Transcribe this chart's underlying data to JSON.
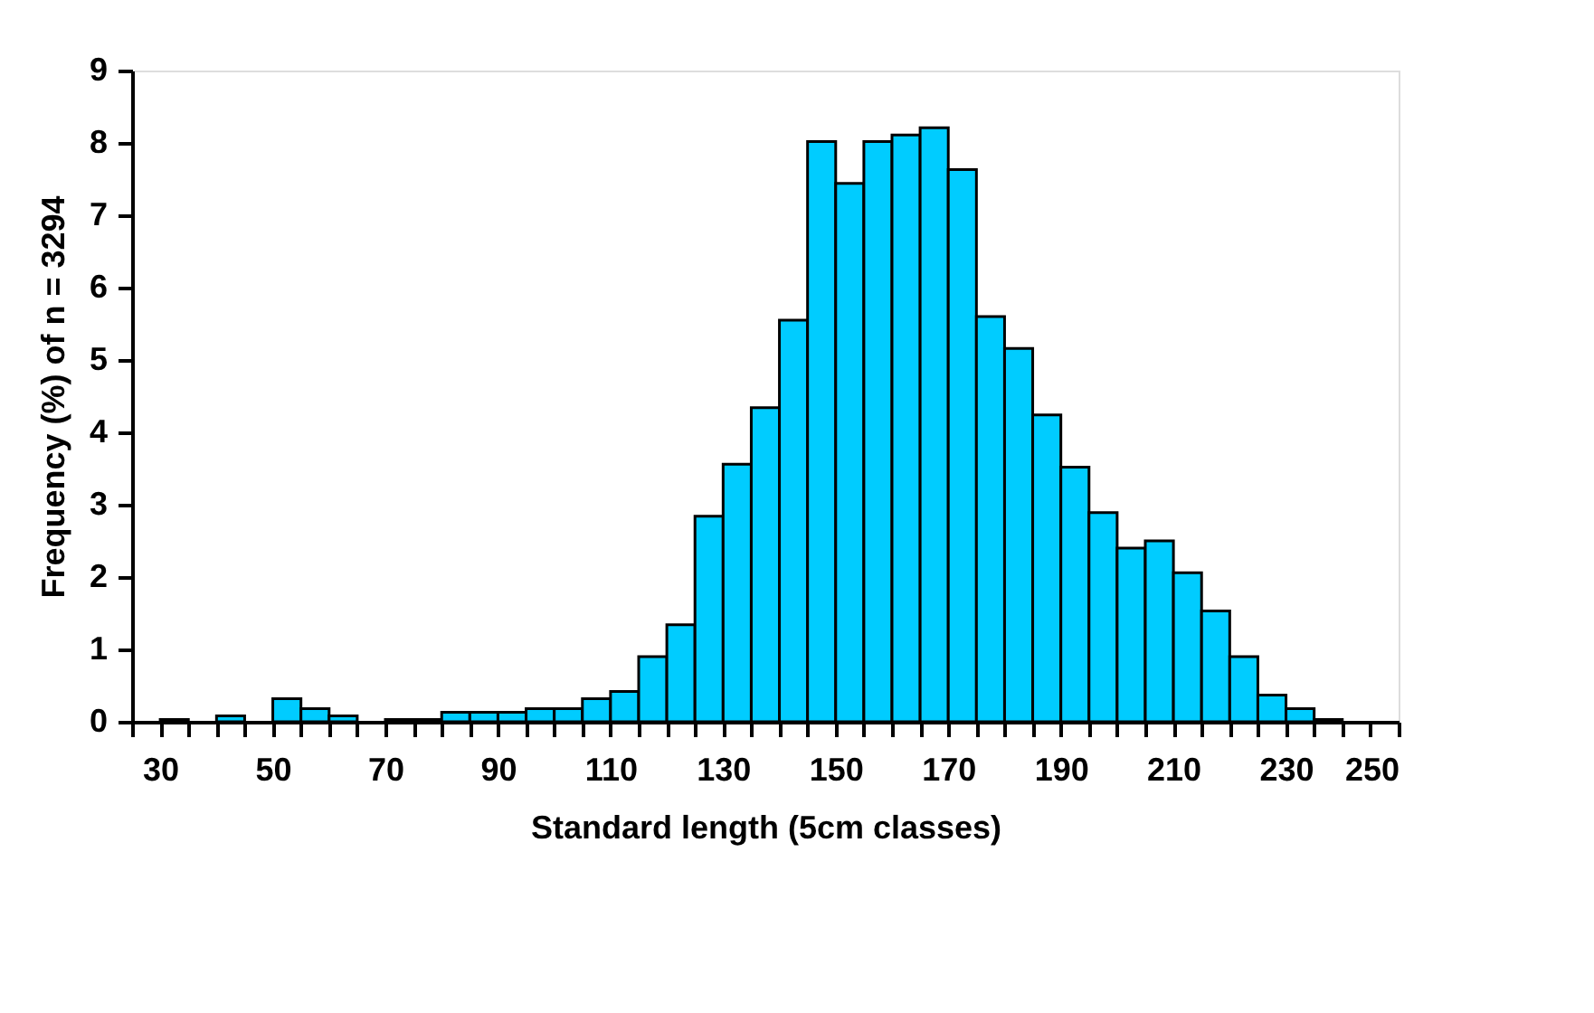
{
  "chart_data": {
    "type": "histogram",
    "xlabel": "Standard length (5cm classes)",
    "ylabel": "Frequency (%) of n = 3294",
    "color": "#00ccff",
    "bins": [
      25,
      30,
      35,
      40,
      45,
      50,
      55,
      60,
      65,
      70,
      75,
      80,
      85,
      90,
      95,
      100,
      105,
      110,
      115,
      120,
      125,
      130,
      135,
      140,
      145,
      150,
      155,
      160,
      165,
      170,
      175,
      180,
      185,
      190,
      195,
      200,
      205,
      210,
      215,
      220,
      225,
      230,
      235,
      240,
      245,
      250
    ],
    "values": [
      0,
      0.03,
      0,
      0.08,
      0,
      0.32,
      0.18,
      0.08,
      0,
      0.03,
      0.03,
      0.13,
      0.13,
      0.13,
      0.18,
      0.18,
      0.32,
      0.42,
      0.9,
      1.34,
      2.84,
      3.56,
      4.34,
      5.55,
      8.02,
      7.44,
      8.02,
      8.11,
      8.21,
      7.63,
      5.6,
      5.16,
      4.24,
      3.52,
      2.89,
      2.4,
      2.5,
      2.06,
      1.53,
      0.9,
      0.37,
      0.18,
      0.03,
      0,
      0
    ],
    "xlim": [
      25,
      250
    ],
    "xticks": [
      {
        "value": 25,
        "label": null
      },
      30,
      {
        "value": 35,
        "label": null
      },
      {
        "value": 40,
        "label": null
      },
      {
        "value": 45,
        "label": null
      },
      50,
      {
        "value": 55,
        "label": null
      },
      {
        "value": 60,
        "label": null
      },
      {
        "value": 65,
        "label": null
      },
      70,
      {
        "value": 75,
        "label": null
      },
      {
        "value": 80,
        "label": null
      },
      {
        "value": 85,
        "label": null
      },
      90,
      {
        "value": 95,
        "label": null
      },
      {
        "value": 100,
        "label": null
      },
      {
        "value": 105,
        "label": null
      },
      110,
      {
        "value": 115,
        "label": null
      },
      {
        "value": 120,
        "label": null
      },
      {
        "value": 125,
        "label": null
      },
      130,
      {
        "value": 135,
        "label": null
      },
      {
        "value": 140,
        "label": null
      },
      {
        "value": 145,
        "label": null
      },
      150,
      {
        "value": 155,
        "label": null
      },
      {
        "value": 160,
        "label": null
      },
      {
        "value": 165,
        "label": null
      },
      170,
      {
        "value": 175,
        "label": null
      },
      {
        "value": 180,
        "label": null
      },
      {
        "value": 185,
        "label": null
      },
      190,
      {
        "value": 195,
        "label": null
      },
      {
        "value": 200,
        "label": null
      },
      {
        "value": 205,
        "label": null
      },
      210,
      {
        "value": 215,
        "label": null
      },
      {
        "value": 220,
        "label": null
      },
      {
        "value": 225,
        "label": null
      },
      230,
      {
        "value": 235,
        "label": null
      },
      {
        "value": 240,
        "label": null
      },
      {
        "value": 245,
        "label": null
      },
      250
    ],
    "ylim": [
      0,
      9
    ],
    "yticks": [
      0,
      1,
      2,
      3,
      4,
      5,
      6,
      7,
      8,
      9
    ],
    "grid": false
  }
}
